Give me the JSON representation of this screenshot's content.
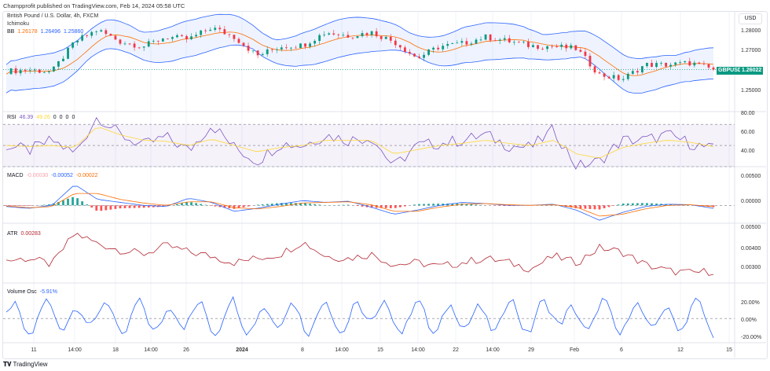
{
  "header": "Champprofit published on TradingView.com, Feb 14, 2024 05:58 UTC",
  "symbol_title": "British Pound / U.S. Dollar, 4h, FXCM",
  "ichimoku_label": "Ichimoku",
  "bb": {
    "label": "BB",
    "values": [
      "1.26178",
      "1.26496",
      "1.25860"
    ]
  },
  "rsi": {
    "label": "RSI",
    "values": [
      "46.39",
      "49.26",
      "0",
      "0",
      "0",
      "0"
    ]
  },
  "macd": {
    "label": "MACD",
    "values": [
      "-0.00030",
      "-0.00052",
      "-0.00022"
    ]
  },
  "atr": {
    "label": "ATR",
    "value": "0.00283"
  },
  "volosc": {
    "label": "Volume Osc",
    "value": "-5.91%"
  },
  "currency": "USD",
  "price_tag": {
    "symbol": "GBPUSD",
    "price": "1.26022"
  },
  "footer": "TradingView",
  "colors": {
    "up": "#089981",
    "down": "#f23645",
    "bb": "#2962ff",
    "bb_fill": "#2962ff",
    "ma": "#ff6d00",
    "rsi": "#7e57c2",
    "rsi_ma": "#fdd835",
    "atr": "#b22833",
    "vol": "#2962ff"
  },
  "chart_data": [
    {
      "type": "candlestick",
      "title": "British Pound / U.S. Dollar, 4h, FXCM",
      "y_ticks": [
        "1.28000",
        "1.27000",
        "1.25000"
      ],
      "ylim": [
        1.244,
        1.284
      ],
      "x_ticks": [
        "11",
        "14:00",
        "18",
        "14:00",
        "26",
        "2024",
        "8",
        "14:00",
        "15",
        "14:00",
        "22",
        "14:00",
        "29",
        "Feb",
        "6",
        "12",
        "15"
      ],
      "close": [
        1.2595,
        1.26,
        1.2592,
        1.272,
        1.277,
        1.272,
        1.27,
        1.274,
        1.273,
        1.278,
        1.274,
        1.266,
        1.27,
        1.2705,
        1.276,
        1.2745,
        1.276,
        1.272,
        1.265,
        1.27,
        1.2712,
        1.274,
        1.2722,
        1.2702,
        1.27,
        1.269,
        1.258,
        1.256,
        1.2622,
        1.2622,
        1.263,
        1.2602
      ]
    },
    {
      "type": "line",
      "title": "RSI",
      "y_ticks": [
        "80.00",
        "60.00",
        "40.00"
      ],
      "ylim": [
        30,
        82
      ],
      "band": [
        30,
        70
      ],
      "values": [
        50,
        45,
        55,
        42,
        78,
        60,
        50,
        58,
        45,
        70,
        48,
        35,
        52,
        50,
        60,
        55,
        58,
        30,
        50,
        52,
        55,
        60,
        50,
        48,
        65,
        30,
        35,
        55,
        55,
        60,
        52,
        46
      ],
      "ma": [
        50,
        49,
        50,
        48,
        68,
        60,
        55,
        54,
        50,
        56,
        50,
        44,
        48,
        50,
        55,
        55,
        55,
        42,
        46,
        50,
        52,
        55,
        52,
        50,
        55,
        42,
        38,
        48,
        52,
        55,
        53,
        49
      ]
    },
    {
      "type": "line",
      "title": "MACD",
      "y_ticks": [
        "0.00500",
        "0.00000"
      ],
      "ylim": [
        -0.003,
        0.0065
      ],
      "values": [
        -0.0002,
        -0.0005,
        0.0,
        0.0035,
        0.001,
        0.0005,
        0.0,
        -0.0002,
        0.0012,
        0.0005,
        -0.001,
        -0.0005,
        0.0002,
        0.0008,
        0.0005,
        0.0007,
        -0.0003,
        -0.0015,
        -0.0008,
        0.0,
        0.0005,
        0.0003,
        0.0,
        0.0,
        0.0002,
        -0.0008,
        -0.0025,
        -0.0012,
        -0.0002,
        0.0002,
        0.0001,
        -0.0005
      ],
      "signal": [
        -0.0001,
        -0.0004,
        -0.0002,
        0.002,
        0.002,
        0.001,
        0.0004,
        0.0,
        0.0006,
        0.0006,
        -0.0004,
        -0.0006,
        -0.0002,
        0.0004,
        0.0005,
        0.0006,
        0.0001,
        -0.001,
        -0.001,
        -0.0003,
        0.0002,
        0.0003,
        0.0001,
        0.0,
        0.0001,
        -0.0003,
        -0.0018,
        -0.0015,
        -0.0006,
        0.0,
        0.0001,
        -0.0002
      ]
    },
    {
      "type": "line",
      "title": "ATR",
      "y_ticks": [
        "0.00500",
        "0.00400",
        "0.00300"
      ],
      "ylim": [
        0.0025,
        0.0052
      ],
      "values": [
        0.0035,
        0.0036,
        0.0033,
        0.0048,
        0.0043,
        0.004,
        0.0038,
        0.0042,
        0.0039,
        0.0037,
        0.0034,
        0.0036,
        0.0038,
        0.0044,
        0.0037,
        0.0036,
        0.0038,
        0.0033,
        0.0034,
        0.0032,
        0.0034,
        0.0036,
        0.0034,
        0.0031,
        0.0037,
        0.0034,
        0.0041,
        0.0039,
        0.0033,
        0.003,
        0.0029,
        0.003
      ]
    },
    {
      "type": "line",
      "title": "Volume Osc",
      "y_ticks": [
        "20.00%",
        "0.00%",
        "-20.00%"
      ],
      "ylim": [
        -25,
        35
      ],
      "values": [
        10,
        -15,
        20,
        -10,
        25,
        -15,
        15,
        -12,
        20,
        -10,
        18,
        -15,
        22,
        -8,
        15,
        -12,
        30,
        -10,
        18,
        -14,
        16,
        -12,
        20,
        -10,
        28,
        -14,
        18,
        -10,
        15,
        -12,
        20,
        -6
      ]
    }
  ]
}
